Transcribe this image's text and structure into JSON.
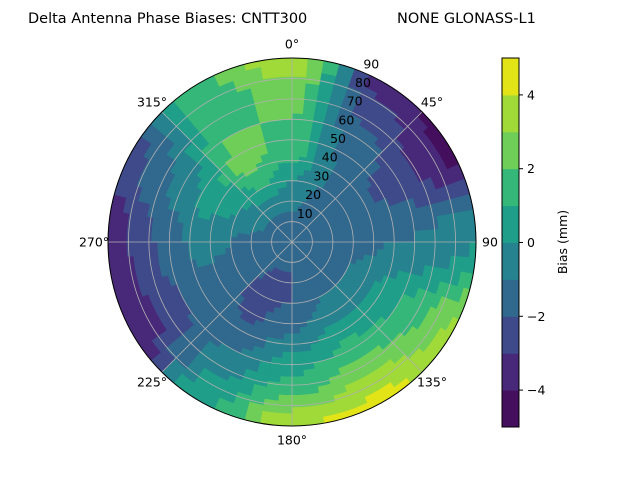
{
  "chart_data": {
    "type": "heatmap",
    "subtype": "polar-contour",
    "title": "Delta Antenna Phase Biases: CNTT300",
    "subtitle": "NONE GLONASS-L1",
    "theta_direction": "clockwise",
    "theta_zero": "north",
    "theta_tick_labels": [
      "0°",
      "45°",
      "90",
      "135°",
      "180°",
      "225°",
      "270°",
      "315°"
    ],
    "theta_ticks": [
      0,
      45,
      90,
      135,
      180,
      225,
      270,
      315
    ],
    "r_tick_labels": [
      "10",
      "20",
      "30",
      "40",
      "50",
      "60",
      "70",
      "80",
      "90"
    ],
    "r_ticks": [
      10,
      20,
      30,
      40,
      50,
      60,
      70,
      80,
      90
    ],
    "rlim": [
      0,
      90
    ],
    "grid": true,
    "colorbar": {
      "label": "Bias (mm)",
      "ticks": [
        -4,
        -2,
        0,
        2,
        4
      ],
      "tick_labels": [
        "−4",
        "−2",
        "0",
        "2",
        "4"
      ],
      "levels": [
        -5,
        -4,
        -3,
        -2,
        -1,
        0,
        1,
        2,
        3,
        4,
        5
      ],
      "colormap": "viridis",
      "colors": [
        "#440f5c",
        "#482979",
        "#3e4a89",
        "#31688e",
        "#26828e",
        "#1f9e89",
        "#35b779",
        "#6ece58",
        "#a0da39",
        "#e2e418"
      ],
      "position": "right"
    },
    "azimuth_grid": [
      0,
      30,
      60,
      90,
      120,
      150,
      180,
      210,
      240,
      270,
      300,
      330
    ],
    "zenith_grid": [
      0,
      15,
      30,
      45,
      60,
      75,
      90
    ],
    "values": [
      [
        -1.5,
        -1,
        0,
        1.5,
        2,
        2.5,
        4
      ],
      [
        -1.5,
        -1.5,
        -1,
        -1,
        -1.5,
        -2.5,
        -3.5
      ],
      [
        -1.5,
        -1.5,
        -1.5,
        -2,
        -2.5,
        -3.5,
        -4.5
      ],
      [
        -1.5,
        -1.5,
        -1.5,
        -1,
        -1,
        -0.5,
        0
      ],
      [
        -1.5,
        -1.5,
        -1,
        0,
        1,
        2,
        3.5
      ],
      [
        -1.5,
        -1.5,
        -1,
        0,
        1.5,
        3,
        4.5
      ],
      [
        -1.5,
        -2,
        -2,
        -1,
        0.5,
        2,
        4
      ],
      [
        -1.5,
        -2,
        -2.5,
        -2,
        -1,
        0,
        1
      ],
      [
        -1.5,
        -1.5,
        -1.5,
        -1.5,
        -2,
        -3,
        -4
      ],
      [
        -1.5,
        -1.5,
        -1,
        -0.5,
        -1.5,
        -2.5,
        -4
      ],
      [
        -1.5,
        -1,
        0,
        0.5,
        -0.5,
        -1.5,
        -2.5
      ],
      [
        -1.5,
        -1,
        1,
        2.5,
        2,
        1.5,
        2
      ]
    ]
  }
}
